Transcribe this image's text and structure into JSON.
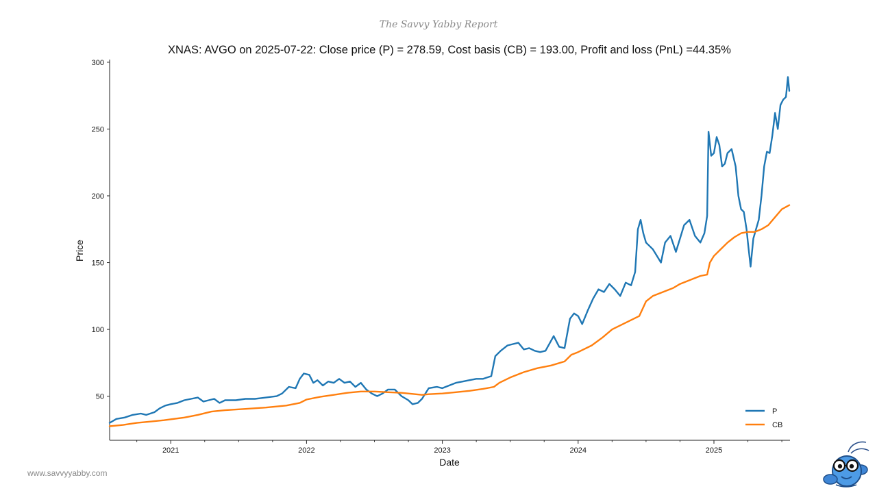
{
  "header": {
    "brand": "The Savvy Yabby Report"
  },
  "footer": {
    "website": "www.savvyyabby.com"
  },
  "logo": {
    "icon": "yabby-mascot-icon"
  },
  "chart_data": {
    "type": "line",
    "title": "XNAS: AVGO on 2025-07-22: Close price (P) = 278.59, Cost basis (CB) = 193.00, Profit and loss (PnL) =44.35%",
    "xlabel": "Date",
    "ylabel": "Price",
    "xlim": [
      2020.55,
      2025.56
    ],
    "ylim": [
      17,
      302
    ],
    "yticks": [
      50,
      100,
      150,
      200,
      250,
      300
    ],
    "xticks": [
      {
        "label": "2021",
        "value": 2021.0
      },
      {
        "label": "2022",
        "value": 2022.0
      },
      {
        "label": "2023",
        "value": 2023.0
      },
      {
        "label": "2024",
        "value": 2024.0
      },
      {
        "label": "2025",
        "value": 2025.0
      }
    ],
    "x_minor_ticks_per_year": 4,
    "grid": false,
    "legend": {
      "placement": "bottom-right"
    },
    "series": [
      {
        "name": "P",
        "color": "#1f77b4",
        "points": [
          [
            2020.55,
            30
          ],
          [
            2020.6,
            33
          ],
          [
            2020.66,
            34
          ],
          [
            2020.72,
            36
          ],
          [
            2020.78,
            37
          ],
          [
            2020.82,
            36
          ],
          [
            2020.88,
            38
          ],
          [
            2020.92,
            41
          ],
          [
            2020.96,
            43
          ],
          [
            2021.0,
            44
          ],
          [
            2021.05,
            45
          ],
          [
            2021.1,
            47
          ],
          [
            2021.15,
            48
          ],
          [
            2021.2,
            49
          ],
          [
            2021.24,
            46
          ],
          [
            2021.28,
            47
          ],
          [
            2021.32,
            48
          ],
          [
            2021.36,
            45
          ],
          [
            2021.4,
            47
          ],
          [
            2021.48,
            47
          ],
          [
            2021.55,
            48
          ],
          [
            2021.62,
            48
          ],
          [
            2021.7,
            49
          ],
          [
            2021.78,
            50
          ],
          [
            2021.82,
            52
          ],
          [
            2021.87,
            57
          ],
          [
            2021.92,
            56
          ],
          [
            2021.95,
            63
          ],
          [
            2021.98,
            67
          ],
          [
            2022.02,
            66
          ],
          [
            2022.05,
            60
          ],
          [
            2022.08,
            62
          ],
          [
            2022.12,
            58
          ],
          [
            2022.16,
            61
          ],
          [
            2022.2,
            60
          ],
          [
            2022.24,
            63
          ],
          [
            2022.28,
            60
          ],
          [
            2022.32,
            61
          ],
          [
            2022.36,
            57
          ],
          [
            2022.4,
            60
          ],
          [
            2022.44,
            55
          ],
          [
            2022.48,
            52
          ],
          [
            2022.52,
            50
          ],
          [
            2022.56,
            52
          ],
          [
            2022.6,
            55
          ],
          [
            2022.65,
            55
          ],
          [
            2022.7,
            50
          ],
          [
            2022.75,
            47
          ],
          [
            2022.78,
            44
          ],
          [
            2022.82,
            45
          ],
          [
            2022.85,
            48
          ],
          [
            2022.9,
            56
          ],
          [
            2022.96,
            57
          ],
          [
            2023.0,
            56
          ],
          [
            2023.05,
            58
          ],
          [
            2023.1,
            60
          ],
          [
            2023.15,
            61
          ],
          [
            2023.2,
            62
          ],
          [
            2023.25,
            63
          ],
          [
            2023.3,
            63
          ],
          [
            2023.33,
            64
          ],
          [
            2023.36,
            65
          ],
          [
            2023.39,
            80
          ],
          [
            2023.43,
            84
          ],
          [
            2023.48,
            88
          ],
          [
            2023.52,
            89
          ],
          [
            2023.56,
            90
          ],
          [
            2023.6,
            85
          ],
          [
            2023.64,
            86
          ],
          [
            2023.68,
            84
          ],
          [
            2023.72,
            83
          ],
          [
            2023.76,
            84
          ],
          [
            2023.82,
            95
          ],
          [
            2023.86,
            87
          ],
          [
            2023.9,
            86
          ],
          [
            2023.94,
            108
          ],
          [
            2023.97,
            112
          ],
          [
            2024.0,
            110
          ],
          [
            2024.03,
            104
          ],
          [
            2024.07,
            114
          ],
          [
            2024.11,
            123
          ],
          [
            2024.15,
            130
          ],
          [
            2024.19,
            128
          ],
          [
            2024.23,
            134
          ],
          [
            2024.27,
            130
          ],
          [
            2024.31,
            125
          ],
          [
            2024.35,
            135
          ],
          [
            2024.39,
            133
          ],
          [
            2024.42,
            143
          ],
          [
            2024.44,
            175
          ],
          [
            2024.46,
            182
          ],
          [
            2024.48,
            172
          ],
          [
            2024.5,
            165
          ],
          [
            2024.52,
            163
          ],
          [
            2024.55,
            160
          ],
          [
            2024.58,
            155
          ],
          [
            2024.61,
            150
          ],
          [
            2024.64,
            165
          ],
          [
            2024.68,
            170
          ],
          [
            2024.72,
            158
          ],
          [
            2024.75,
            168
          ],
          [
            2024.78,
            178
          ],
          [
            2024.82,
            182
          ],
          [
            2024.86,
            170
          ],
          [
            2024.9,
            165
          ],
          [
            2024.93,
            172
          ],
          [
            2024.95,
            185
          ],
          [
            2024.96,
            248
          ],
          [
            2024.98,
            230
          ],
          [
            2025.0,
            232
          ],
          [
            2025.02,
            244
          ],
          [
            2025.04,
            238
          ],
          [
            2025.06,
            222
          ],
          [
            2025.08,
            224
          ],
          [
            2025.1,
            232
          ],
          [
            2025.13,
            235
          ],
          [
            2025.16,
            222
          ],
          [
            2025.18,
            200
          ],
          [
            2025.2,
            190
          ],
          [
            2025.22,
            188
          ],
          [
            2025.24,
            175
          ],
          [
            2025.25,
            165
          ],
          [
            2025.27,
            147
          ],
          [
            2025.29,
            168
          ],
          [
            2025.31,
            175
          ],
          [
            2025.33,
            182
          ],
          [
            2025.35,
            200
          ],
          [
            2025.37,
            222
          ],
          [
            2025.39,
            233
          ],
          [
            2025.41,
            232
          ],
          [
            2025.43,
            245
          ],
          [
            2025.45,
            262
          ],
          [
            2025.47,
            250
          ],
          [
            2025.49,
            268
          ],
          [
            2025.51,
            272
          ],
          [
            2025.53,
            274
          ],
          [
            2025.545,
            289
          ],
          [
            2025.555,
            278.59
          ]
        ]
      },
      {
        "name": "CB",
        "color": "#ff7f0e",
        "points": [
          [
            2020.55,
            27.5
          ],
          [
            2020.65,
            28.5
          ],
          [
            2020.75,
            30
          ],
          [
            2020.85,
            31
          ],
          [
            2020.95,
            32
          ],
          [
            2021.1,
            34
          ],
          [
            2021.2,
            36
          ],
          [
            2021.3,
            38.5
          ],
          [
            2021.4,
            39.5
          ],
          [
            2021.55,
            40.5
          ],
          [
            2021.7,
            41.5
          ],
          [
            2021.85,
            43
          ],
          [
            2021.95,
            45
          ],
          [
            2022.0,
            47.5
          ],
          [
            2022.1,
            49.5
          ],
          [
            2022.2,
            51
          ],
          [
            2022.3,
            52.5
          ],
          [
            2022.4,
            53.5
          ],
          [
            2022.5,
            53.5
          ],
          [
            2022.6,
            53
          ],
          [
            2022.7,
            52.5
          ],
          [
            2022.8,
            51.5
          ],
          [
            2022.85,
            51
          ],
          [
            2022.9,
            51.5
          ],
          [
            2023.0,
            52
          ],
          [
            2023.1,
            53
          ],
          [
            2023.2,
            54
          ],
          [
            2023.3,
            55.5
          ],
          [
            2023.38,
            57
          ],
          [
            2023.42,
            60
          ],
          [
            2023.5,
            64
          ],
          [
            2023.55,
            66
          ],
          [
            2023.6,
            68
          ],
          [
            2023.7,
            71
          ],
          [
            2023.8,
            73
          ],
          [
            2023.9,
            76
          ],
          [
            2023.95,
            81
          ],
          [
            2024.0,
            83
          ],
          [
            2024.1,
            88
          ],
          [
            2024.18,
            94
          ],
          [
            2024.25,
            100
          ],
          [
            2024.35,
            105
          ],
          [
            2024.45,
            110
          ],
          [
            2024.5,
            121
          ],
          [
            2024.55,
            125
          ],
          [
            2024.6,
            127
          ],
          [
            2024.7,
            131
          ],
          [
            2024.75,
            134
          ],
          [
            2024.85,
            138
          ],
          [
            2024.9,
            140
          ],
          [
            2024.95,
            141
          ],
          [
            2024.97,
            150
          ],
          [
            2025.0,
            155
          ],
          [
            2025.05,
            160
          ],
          [
            2025.1,
            165
          ],
          [
            2025.15,
            169
          ],
          [
            2025.2,
            172
          ],
          [
            2025.25,
            173
          ],
          [
            2025.3,
            173
          ],
          [
            2025.35,
            175
          ],
          [
            2025.4,
            178
          ],
          [
            2025.45,
            184
          ],
          [
            2025.5,
            190
          ],
          [
            2025.555,
            193
          ]
        ]
      }
    ]
  }
}
